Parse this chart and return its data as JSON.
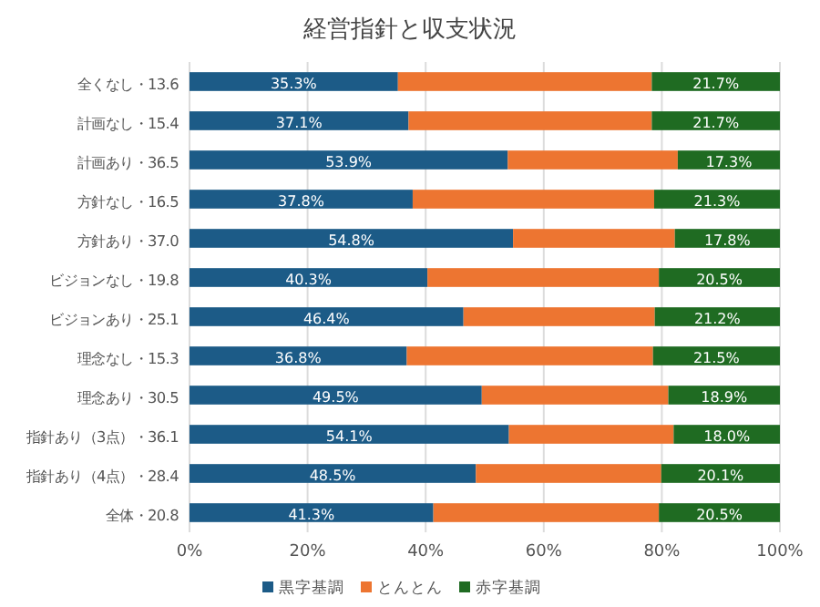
{
  "chart_data": {
    "type": "bar",
    "orientation": "horizontal",
    "stacked": true,
    "title": "経営指針と収支状況",
    "categories": [
      "全くなし・13.6",
      "計画なし・15.4",
      "計画あり・36.5",
      "方針なし・16.5",
      "方針あり・37.0",
      "ビジョンなし・19.8",
      "ビジョンあり・25.1",
      "理念なし・15.3",
      "理念あり・30.5",
      "指針あり（3点）・36.1",
      "指針あり（4点）・28.4",
      "全体・20.8"
    ],
    "series": [
      {
        "name": "黒字基調",
        "color": "#1c5b87",
        "values": [
          35.3,
          37.1,
          53.9,
          37.8,
          54.8,
          40.3,
          46.4,
          36.8,
          49.5,
          54.1,
          48.5,
          41.3
        ],
        "value_labels": [
          "35.3%",
          "37.1%",
          "53.9%",
          "37.8%",
          "54.8%",
          "40.3%",
          "46.4%",
          "36.8%",
          "49.5%",
          "54.1%",
          "48.5%",
          "41.3%"
        ]
      },
      {
        "name": "とんとん",
        "color": "#ed7531",
        "values": [
          43.0,
          41.2,
          28.8,
          40.9,
          27.4,
          39.2,
          32.4,
          41.7,
          31.6,
          27.9,
          31.4,
          38.2
        ]
      },
      {
        "name": "赤字基調",
        "color": "#1f6b22",
        "values": [
          21.7,
          21.7,
          17.3,
          21.3,
          17.8,
          20.5,
          21.2,
          21.5,
          18.9,
          18.0,
          20.1,
          20.5
        ],
        "value_labels": [
          "21.7%",
          "21.7%",
          "17.3%",
          "21.3%",
          "17.8%",
          "20.5%",
          "21.2%",
          "21.5%",
          "18.9%",
          "18.0%",
          "20.1%",
          "20.5%"
        ]
      }
    ],
    "xlim": [
      0,
      100
    ],
    "xticks": [
      {
        "value": 0,
        "label": "0%"
      },
      {
        "value": 20,
        "label": "20%"
      },
      {
        "value": 40,
        "label": "40%"
      },
      {
        "value": 60,
        "label": "60%"
      },
      {
        "value": 80,
        "label": "80%"
      },
      {
        "value": 100,
        "label": "100%"
      }
    ],
    "grid": "x",
    "legend": "bottom"
  }
}
